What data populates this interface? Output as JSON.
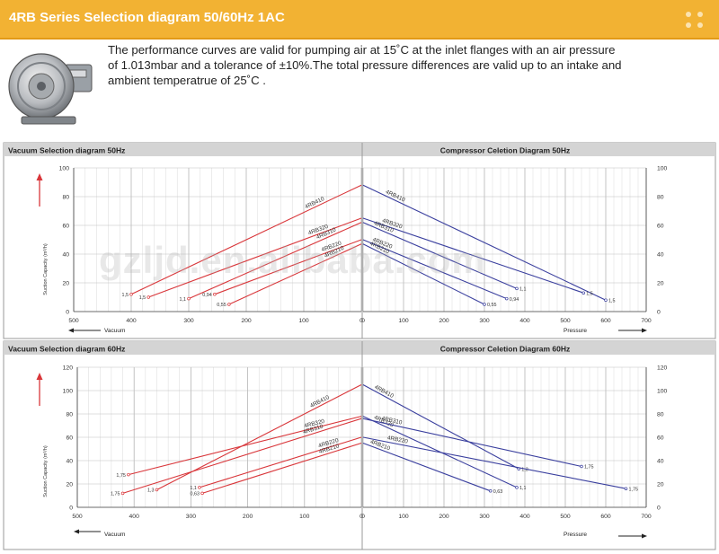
{
  "header": {
    "title": "4RB Series Selection diagram 50/60Hz 1AC"
  },
  "intro": {
    "lines": [
      "The performance curves are valid for pumping air at 15˚C at the inlet flanges with an air pressure",
      "of 1.013mbar and a tolerance of ±10%.The total pressure differences are valid up to an intake and",
      "ambient temperatrue of 25˚C ."
    ]
  },
  "watermark": "gzljd.en.alibaba.com",
  "colors": {
    "header": "#f2b233",
    "vacuum": "#d9363a",
    "compressor": "#3a3f9e",
    "grid": "#c8c8c8"
  },
  "panels": [
    {
      "left_title": "Vacuum Selection diagram 50Hz",
      "right_title": "Compressor Celetion Diagram 50Hz",
      "ylabel": "Suction Capacity  (m³/h)",
      "vacuum_label": "Vacuum",
      "pressure_label": "Pressure"
    },
    {
      "left_title": "Vacuum Selection diagram 60Hz",
      "right_title": "Compressor Celetion Diagram 60Hz",
      "ylabel": "Suction Capacity  (m³/h)",
      "vacuum_label": "Vacuum",
      "pressure_label": "Pressure"
    }
  ],
  "chart_data": [
    {
      "type": "line",
      "title": "Vacuum Selection diagram 50Hz",
      "xlabel": "Vacuum",
      "ylabel": "Suction Capacity  (m³/h)",
      "xlim": [
        500,
        0
      ],
      "ylim": [
        0,
        100
      ],
      "xticks": [
        500,
        400,
        300,
        200,
        100,
        0
      ],
      "yticks": [
        0,
        20,
        40,
        60,
        80,
        100
      ],
      "grid": true,
      "series": [
        {
          "name": "4RB410",
          "x": [
            400,
            0
          ],
          "y": [
            12,
            88
          ],
          "end_label": "1,5"
        },
        {
          "name": "4RB320",
          "x": [
            370,
            0
          ],
          "y": [
            10,
            65
          ],
          "end_label": "1,5"
        },
        {
          "name": "4RB310",
          "x": [
            300,
            0
          ],
          "y": [
            9,
            62
          ],
          "end_label": "1,1"
        },
        {
          "name": "4RB220",
          "x": [
            255,
            0
          ],
          "y": [
            12,
            50
          ],
          "end_label": "0,94"
        },
        {
          "name": "4RB210",
          "x": [
            230,
            0
          ],
          "y": [
            5,
            47
          ],
          "end_label": "0,55"
        }
      ]
    },
    {
      "type": "line",
      "title": "Compressor Celetion Diagram 50Hz",
      "xlabel": "Pressure",
      "ylabel": "",
      "xlim": [
        0,
        700
      ],
      "ylim": [
        0,
        100
      ],
      "xticks": [
        0,
        100,
        200,
        300,
        400,
        500,
        600,
        700
      ],
      "yticks": [
        0,
        20,
        40,
        60,
        80,
        100
      ],
      "grid": true,
      "series": [
        {
          "name": "4RB410",
          "x": [
            0,
            600
          ],
          "y": [
            88,
            8
          ],
          "end_label": "1,5"
        },
        {
          "name": "4RB320",
          "x": [
            0,
            545
          ],
          "y": [
            65,
            13
          ],
          "end_label": "1,5"
        },
        {
          "name": "4RB310",
          "x": [
            0,
            380
          ],
          "y": [
            62,
            16
          ],
          "end_label": "1,1"
        },
        {
          "name": "4RB220",
          "x": [
            0,
            355
          ],
          "y": [
            50,
            9
          ],
          "end_label": "0,94"
        },
        {
          "name": "4RB210",
          "x": [
            0,
            300
          ],
          "y": [
            47,
            5
          ],
          "end_label": "0,55"
        }
      ]
    },
    {
      "type": "line",
      "title": "Vacuum Selection diagram 60Hz",
      "xlabel": "Vacuum",
      "ylabel": "Suction Capacity  (m³/h)",
      "xlim": [
        500,
        0
      ],
      "ylim": [
        0,
        120
      ],
      "xticks": [
        500,
        400,
        300,
        200,
        100,
        0
      ],
      "yticks": [
        0,
        20,
        40,
        60,
        80,
        100,
        120
      ],
      "grid": true,
      "series": [
        {
          "name": "4RB410",
          "x": [
            360,
            0
          ],
          "y": [
            15,
            105
          ],
          "end_label": "1,3"
        },
        {
          "name": "4RB320",
          "x": [
            410,
            0
          ],
          "y": [
            28,
            78
          ],
          "end_label": "1,75"
        },
        {
          "name": "4RB310",
          "x": [
            420,
            0
          ],
          "y": [
            12,
            76
          ],
          "end_label": "1,75"
        },
        {
          "name": "4RB220",
          "x": [
            285,
            0
          ],
          "y": [
            17,
            60
          ],
          "end_label": "1,1"
        },
        {
          "name": "4RB210",
          "x": [
            280,
            0
          ],
          "y": [
            12,
            55
          ],
          "end_label": "0,63"
        }
      ]
    },
    {
      "type": "line",
      "title": "Compressor Celetion Diagram 60Hz",
      "xlabel": "Pressure",
      "ylabel": "",
      "xlim": [
        0,
        700
      ],
      "ylim": [
        0,
        120
      ],
      "xticks": [
        0,
        100,
        200,
        300,
        400,
        500,
        600,
        700
      ],
      "yticks": [
        0,
        20,
        40,
        60,
        80,
        100,
        120
      ],
      "grid": true,
      "series": [
        {
          "name": "4RB410",
          "x": [
            0,
            385
          ],
          "y": [
            105,
            33
          ],
          "end_label": "1,3"
        },
        {
          "name": "4RB320",
          "x": [
            0,
            380
          ],
          "y": [
            78,
            17
          ],
          "end_label": "1,1"
        },
        {
          "name": "4RB310",
          "x": [
            0,
            540
          ],
          "y": [
            76,
            35
          ],
          "end_label": "1,75"
        },
        {
          "name": "4RB220",
          "x": [
            0,
            650
          ],
          "y": [
            60,
            16
          ],
          "end_label": "1,75"
        },
        {
          "name": "4RB210",
          "x": [
            0,
            315
          ],
          "y": [
            55,
            14
          ],
          "end_label": "0,63"
        }
      ]
    }
  ]
}
